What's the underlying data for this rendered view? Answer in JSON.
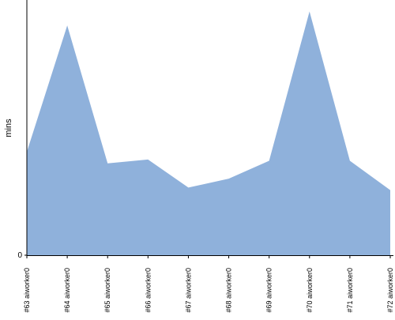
{
  "chart_data": {
    "type": "area",
    "y_label": "mins",
    "categories": [
      "#63 aiworker0",
      "#64 aiworker0",
      "#65 aiworker0",
      "#66 aiworker0",
      "#67 aiworker0",
      "#68 aiworker0",
      "#69 aiworker0",
      "#70 aiworker0",
      "#71 aiworker0",
      "#72 aiworker0"
    ],
    "values": [
      8.1,
      18.0,
      7.2,
      7.5,
      5.3,
      6.0,
      7.4,
      19.1,
      7.4,
      5.1
    ],
    "color": "#8fb1db",
    "ylim": [
      0,
      20
    ],
    "yticks": [
      0
    ]
  }
}
